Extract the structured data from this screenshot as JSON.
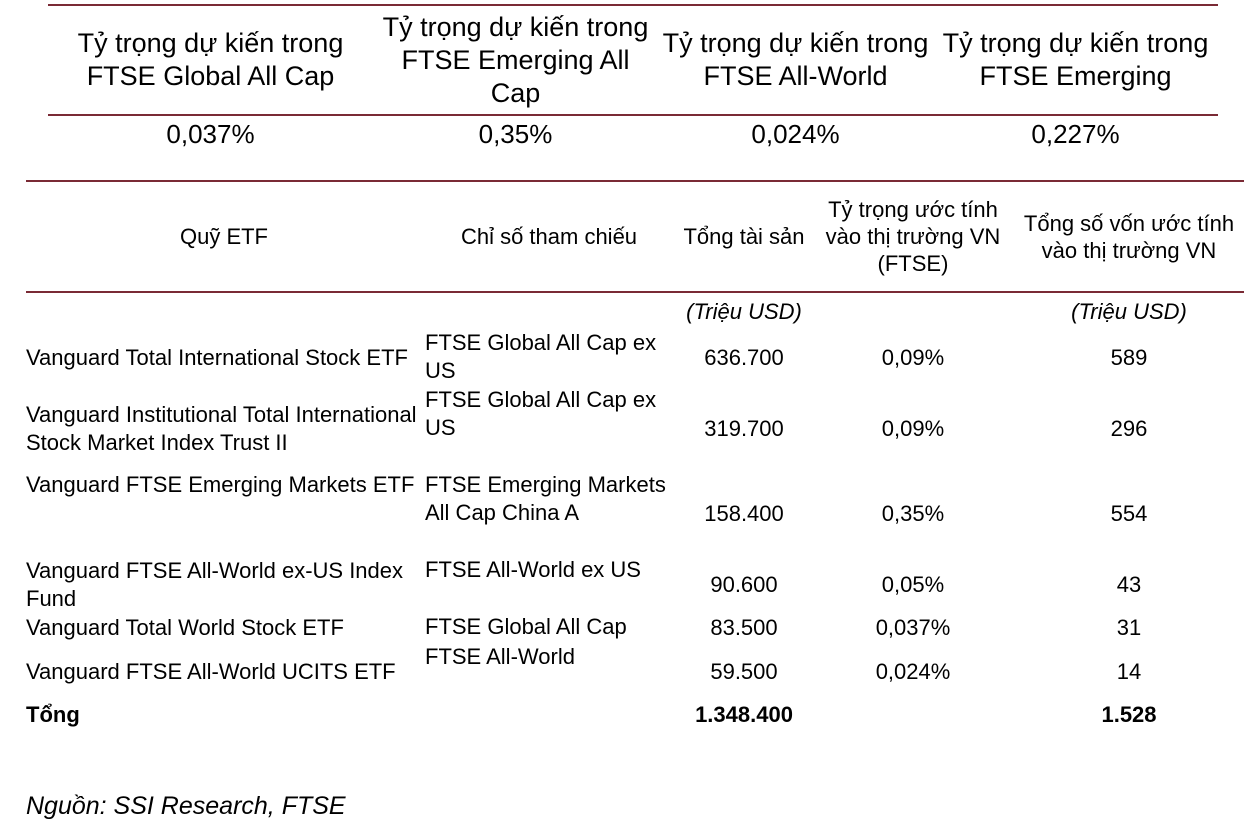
{
  "weights": {
    "headers": [
      "Tỷ trọng dự kiến trong FTSE Global All Cap",
      "Tỷ trọng dự kiến trong FTSE Emerging All Cap",
      "Tỷ trọng dự kiến trong FTSE All-World",
      "Tỷ trọng dự kiến trong FTSE Emerging"
    ],
    "values": [
      "0,037%",
      "0,35%",
      "0,024%",
      "0,227%"
    ]
  },
  "etf_table": {
    "headers": {
      "fund": "Quỹ ETF",
      "index": "Chỉ số tham chiếu",
      "assets": "Tổng tài sản",
      "weight": "Tỷ trọng ước tính vào thị trường VN (FTSE)",
      "capital": "Tổng số vốn ước tính vào thị trường VN"
    },
    "units": {
      "assets": "(Triệu USD)",
      "capital": "(Triệu USD)"
    },
    "rows": [
      {
        "fund": "Vanguard Total International Stock ETF",
        "index": "FTSE Global All Cap ex US",
        "assets": "636.700",
        "weight": "0,09%",
        "capital": "589"
      },
      {
        "fund": "Vanguard Institutional Total International Stock Market Index Trust II",
        "index": "FTSE Global All Cap ex US",
        "assets": "319.700",
        "weight": "0,09%",
        "capital": "296"
      },
      {
        "fund": "Vanguard FTSE Emerging Markets ETF",
        "index": "FTSE Emerging Markets All Cap China A",
        "assets": "158.400",
        "weight": "0,35%",
        "capital": "554"
      },
      {
        "fund": "Vanguard FTSE All-World ex-US Index Fund",
        "index": "FTSE All-World ex US",
        "assets": "90.600",
        "weight": "0,05%",
        "capital": "43"
      },
      {
        "fund": "Vanguard Total World Stock ETF",
        "index": "FTSE Global All Cap",
        "assets": "83.500",
        "weight": "0,037%",
        "capital": "31"
      },
      {
        "fund": "Vanguard FTSE All-World UCITS ETF",
        "index": "FTSE All-World",
        "assets": "59.500",
        "weight": "0,024%",
        "capital": "14"
      }
    ],
    "total": {
      "label": "Tổng",
      "assets": "1.348.400",
      "capital": "1.528"
    }
  },
  "source": "Nguồn: SSI Research, FTSE",
  "colors": {
    "rule": "#7a2a35",
    "text": "#000000"
  }
}
